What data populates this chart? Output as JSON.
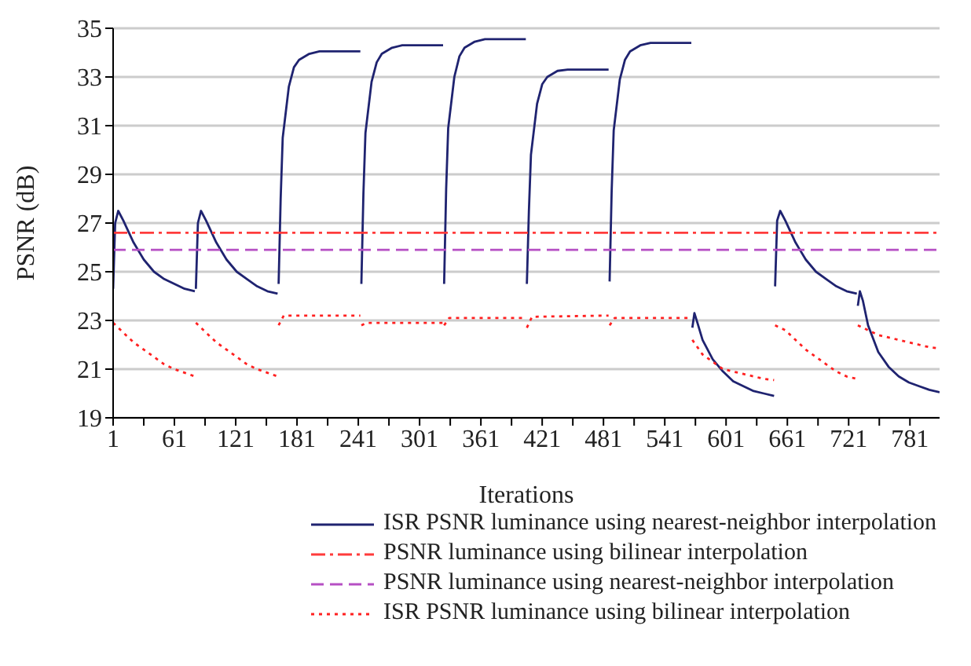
{
  "chart_data": {
    "type": "line",
    "xlabel": "Iterations",
    "ylabel": "PSNR (dB)",
    "xlim": [
      1,
      810
    ],
    "ylim": [
      19,
      35
    ],
    "xticks": [
      1,
      {
        "value": 31,
        "label": null
      },
      61,
      {
        "value": 91,
        "label": null
      },
      121,
      {
        "value": 151,
        "label": null
      },
      181,
      {
        "value": 211,
        "label": null
      },
      241,
      {
        "value": 271,
        "label": null
      },
      301,
      {
        "value": 331,
        "label": null
      },
      361,
      {
        "value": 391,
        "label": null
      },
      421,
      {
        "value": 451,
        "label": null
      },
      481,
      {
        "value": 511,
        "label": null
      },
      541,
      {
        "value": 571,
        "label": null
      },
      601,
      {
        "value": 631,
        "label": null
      },
      661,
      {
        "value": 691,
        "label": null
      },
      721,
      {
        "value": 751,
        "label": null
      },
      781
    ],
    "yticks": [
      19,
      21,
      23,
      25,
      27,
      29,
      31,
      33,
      35
    ],
    "grid": "y",
    "legend": "bottom",
    "series": [
      {
        "name": "ISR PSNR luminance using nearest-neighbor interpolation",
        "color": "#1f2370",
        "line_style": "solid",
        "x": [
          1,
          3,
          6,
          11,
          21,
          31,
          41,
          51,
          61,
          71,
          81,
          81.5,
          82,
          84,
          87,
          92,
          102,
          112,
          122,
          132,
          142,
          152,
          162,
          162.5,
          163,
          165,
          167,
          173,
          178,
          183,
          193,
          203,
          223,
          243,
          243.5,
          244,
          246,
          248,
          254,
          259,
          264,
          274,
          284,
          304,
          324,
          324.5,
          325,
          327,
          329,
          335,
          340,
          345,
          355,
          365,
          385,
          405,
          405.5,
          406,
          408,
          410,
          416,
          421,
          426,
          436,
          446,
          466,
          486,
          486.5,
          487,
          489,
          491,
          497,
          502,
          507,
          517,
          527,
          547,
          567,
          567.5,
          568,
          570,
          573,
          578,
          588,
          598,
          608,
          618,
          628,
          638,
          648,
          648.5,
          649,
          651,
          654,
          659,
          669,
          679,
          689,
          699,
          709,
          719,
          729,
          729.5,
          730,
          732,
          735,
          740,
          750,
          760,
          770,
          780,
          790,
          800,
          810
        ],
        "values": [
          24.3,
          27.0,
          27.5,
          27.1,
          26.2,
          25.5,
          25.0,
          24.7,
          24.5,
          24.3,
          24.2,
          null,
          24.3,
          27.0,
          27.5,
          27.1,
          26.2,
          25.5,
          25.0,
          24.7,
          24.4,
          24.2,
          24.1,
          null,
          24.5,
          28.0,
          30.5,
          32.6,
          33.4,
          33.7,
          33.95,
          34.05,
          34.05,
          34.05,
          null,
          24.5,
          28.2,
          30.7,
          32.8,
          33.6,
          33.95,
          34.2,
          34.3,
          34.3,
          34.3,
          null,
          24.5,
          28.4,
          30.9,
          33.0,
          33.85,
          34.2,
          34.45,
          34.55,
          34.55,
          34.55,
          null,
          24.5,
          27.5,
          29.8,
          31.9,
          32.7,
          33.0,
          33.25,
          33.3,
          33.3,
          33.3,
          null,
          24.6,
          28.3,
          30.8,
          32.9,
          33.7,
          34.05,
          34.3,
          34.4,
          34.4,
          34.4,
          null,
          22.7,
          23.3,
          22.9,
          22.2,
          21.4,
          20.9,
          20.5,
          20.3,
          20.1,
          20.0,
          19.9,
          null,
          24.4,
          27.1,
          27.5,
          27.1,
          26.2,
          25.5,
          25.0,
          24.7,
          24.4,
          24.2,
          24.1,
          null,
          23.6,
          24.2,
          23.8,
          22.8,
          21.7,
          21.1,
          20.7,
          20.45,
          20.3,
          20.15,
          20.05
        ]
      },
      {
        "name": "PSNR luminance using bilinear interpolation",
        "color": "#ff3b3b",
        "line_style": "dashdot",
        "x": [
          1,
          810
        ],
        "values": [
          26.6,
          26.6
        ]
      },
      {
        "name": "PSNR luminance using nearest-neighbor interpolation",
        "color": "#b650c4",
        "line_style": "dashed",
        "x": [
          1,
          810
        ],
        "values": [
          25.9,
          25.9
        ]
      },
      {
        "name": "ISR PSNR luminance using bilinear interpolation",
        "color": "#ff2020",
        "line_style": "dotted",
        "x": [
          1,
          11,
          21,
          31,
          41,
          51,
          61,
          71,
          81,
          81.5,
          82,
          92,
          102,
          112,
          122,
          132,
          142,
          152,
          162,
          162.5,
          163,
          168,
          243,
          243.5,
          244,
          249,
          324,
          324.5,
          325,
          330,
          405,
          405.5,
          406,
          411,
          486,
          486.5,
          487,
          492,
          567,
          567.5,
          568,
          578,
          588,
          598,
          608,
          618,
          628,
          638,
          648,
          648.5,
          649,
          659,
          669,
          679,
          689,
          699,
          709,
          719,
          729,
          729.5,
          730,
          740,
          750,
          760,
          770,
          780,
          790,
          800,
          810
        ],
        "values": [
          22.9,
          22.5,
          22.1,
          21.8,
          21.5,
          21.2,
          21.0,
          20.85,
          20.7,
          null,
          22.9,
          22.5,
          22.1,
          21.8,
          21.5,
          21.2,
          21.0,
          20.85,
          20.7,
          null,
          22.8,
          23.2,
          23.2,
          null,
          22.8,
          22.9,
          22.9,
          null,
          22.8,
          23.1,
          23.1,
          null,
          22.7,
          23.15,
          23.2,
          null,
          22.8,
          23.1,
          23.1,
          null,
          22.2,
          21.6,
          21.3,
          21.0,
          20.9,
          20.8,
          20.7,
          20.6,
          20.55,
          null,
          22.8,
          22.6,
          22.2,
          21.8,
          21.5,
          21.2,
          20.9,
          20.7,
          20.6,
          null,
          22.8,
          22.6,
          22.4,
          22.3,
          22.2,
          22.1,
          22.0,
          21.9,
          21.85
        ]
      }
    ]
  }
}
